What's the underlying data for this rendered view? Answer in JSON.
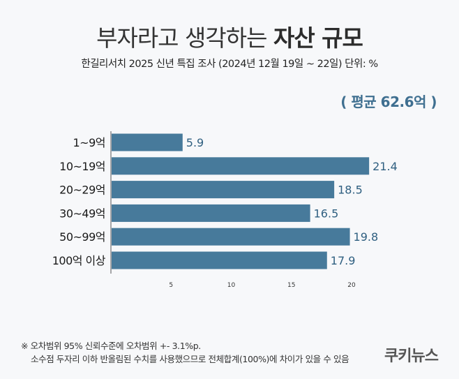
{
  "header": {
    "title_light": "부자라고 생각하는",
    "title_bold": "자산 규모",
    "subtitle": "한길리서치 2025 신년 특집 조사 (2024년 12월 19일 ~ 22일) 단위: %",
    "average": "( 평균 62.6억 )"
  },
  "chart_data": {
    "type": "bar",
    "orientation": "horizontal",
    "categories": [
      "1~9억",
      "10~19억",
      "20~29억",
      "30~49억",
      "50~99억",
      "100억 이상"
    ],
    "values": [
      5.9,
      21.4,
      18.5,
      16.5,
      19.8,
      17.9
    ],
    "data_labels": [
      "5.9",
      "21.4",
      "18.5",
      "16.5",
      "19.8",
      "17.9"
    ],
    "xticks": [
      5,
      10,
      15,
      20
    ],
    "xlim": [
      0,
      23
    ],
    "grid": false,
    "bar_color": "#477a9b",
    "label_color": "#2f5f80"
  },
  "footer": {
    "note1": "※ 오차범위 95% 신뢰수준에 오차범위 +- 3.1%p.",
    "note2": "소수점 두자리 이하 반올림된 수치를 사용했으므로 전체합계(100%)에 차이가 있을 수 있음",
    "logo": "쿠키뉴스"
  }
}
